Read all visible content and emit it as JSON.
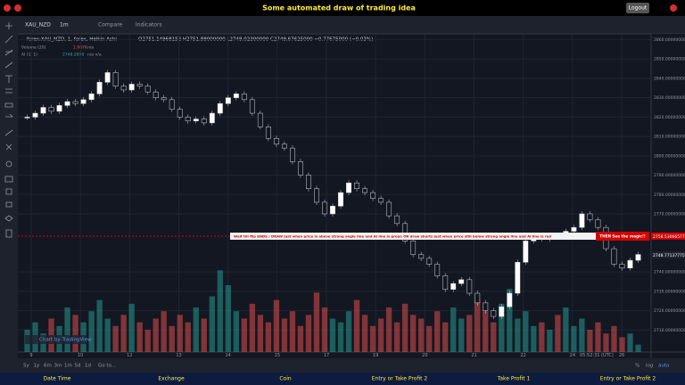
{
  "header": {
    "title": "Some automated draw of trading idea",
    "logout": "Logout"
  },
  "toolbar": {
    "symbol": "XAU_NZD",
    "interval": "1m",
    "compare": "Compare",
    "indicators": "Indicators"
  },
  "legend": {
    "symbol_line": "forex:XAU_NZD, 1, forex, Heikin Ashi",
    "ohlc": "O2751.14968152  H2751.88000000  L2748.02300000  C2749.67625000  −0.77675000 (−0.03%)",
    "volume_name": "Volume (20)",
    "volume_value": "1.987K",
    "volume_na": "n/a",
    "ai_name": "AI (1, 1)",
    "ai_value": "2748.2890",
    "ai_na": "n/a  n/a"
  },
  "annotation": {
    "text": "Wait till flip ENDS  /   DRAW just when  price is above strong angle line and AI line is green      OR      draw shorts just when price still below strong angle line and AI line is red",
    "highlight": "THEN See the magic!!"
  },
  "watermark": "Chart by TradingView",
  "chart_data": {
    "type": "candlestick",
    "values": [
      2820,
      2822,
      2825,
      2823,
      2826,
      2828,
      2827,
      2829,
      2832,
      2838,
      2843,
      2836,
      2834,
      2837,
      2836,
      2833,
      2830,
      2829,
      2824,
      2820,
      2818,
      2819,
      2817,
      2822,
      2827,
      2830,
      2832,
      2829,
      2822,
      2815,
      2809,
      2806,
      2804,
      2797,
      2790,
      2783,
      2776,
      2770,
      2774,
      2781,
      2786,
      2783,
      2781,
      2778,
      2776,
      2769,
      2765,
      2756,
      2749,
      2747,
      2744,
      2738,
      2731,
      2734,
      2736,
      2729,
      2724,
      2720,
      2717,
      2722,
      2729,
      2745,
      2756,
      2758,
      2757,
      2759,
      2758,
      2761,
      2763,
      2770,
      2767,
      2763,
      2752,
      2744,
      2742,
      2746,
      2749
    ],
    "volume": [
      6,
      8,
      5,
      9,
      7,
      12,
      10,
      8,
      11,
      14,
      9,
      7,
      10,
      13,
      8,
      6,
      9,
      11,
      7,
      10,
      8,
      12,
      9,
      15,
      22,
      18,
      11,
      9,
      13,
      10,
      8,
      14,
      9,
      11,
      7,
      10,
      16,
      12,
      9,
      8,
      11,
      14,
      10,
      7,
      9,
      12,
      8,
      13,
      10,
      9,
      7,
      11,
      8,
      12,
      9,
      10,
      14,
      11,
      8,
      13,
      17,
      9,
      11,
      7,
      8,
      6,
      10,
      12,
      7,
      9,
      6,
      8,
      5,
      7,
      4,
      5,
      2
    ],
    "vlim": [
      0,
      24
    ],
    "ylim": [
      2700,
      2863
    ],
    "yticks": [
      {
        "value": 2710,
        "label": "2710.00000000"
      },
      {
        "value": 2720,
        "label": "2720.00000000"
      },
      {
        "value": 2730,
        "label": "2730.00000000"
      },
      {
        "value": 2740,
        "label": "2740.00000000"
      },
      {
        "value": 2770,
        "label": "2770.00000000"
      },
      {
        "value": 2780,
        "label": "2780.00000000"
      },
      {
        "value": 2790,
        "label": "2790.00000000"
      },
      {
        "value": 2800,
        "label": "2800.00000000"
      },
      {
        "value": 2810,
        "label": "2810.00000000"
      },
      {
        "value": 2820,
        "label": "2820.00000000"
      },
      {
        "value": 2830,
        "label": "2830.00000000"
      },
      {
        "value": 2840,
        "label": "2840.00000000"
      },
      {
        "value": 2850,
        "label": "2850.00000000"
      },
      {
        "value": 2860,
        "label": "2860.00000000"
      }
    ],
    "price_tags": [
      {
        "value": 2758.53066577,
        "label": "2758.53066577",
        "color": "#d50000"
      },
      {
        "value": 2748.77137775,
        "label": "2748.77137775",
        "color": "#1e222d"
      }
    ],
    "xtick_labels": [
      "9",
      "10",
      "12",
      "13",
      "14",
      "15",
      "17",
      "19",
      "20",
      "21",
      "22",
      "24",
      "26"
    ],
    "up_color": "#26a69a",
    "down_color": "#ef5350",
    "grid": true
  },
  "bottom_bar": {
    "ranges": [
      "5y",
      "1y",
      "6m",
      "3m",
      "1m",
      "5d",
      "1d"
    ],
    "goto": "Go to...",
    "time": "05:52:31 (UTC)",
    "percent": "%",
    "log": "log",
    "auto": "auto"
  },
  "footer": [
    "Date Time",
    "Exchange",
    "Coin",
    "Entry or Take Profit 2",
    "Take Profit 1",
    "Entry or Take Profit 2"
  ]
}
